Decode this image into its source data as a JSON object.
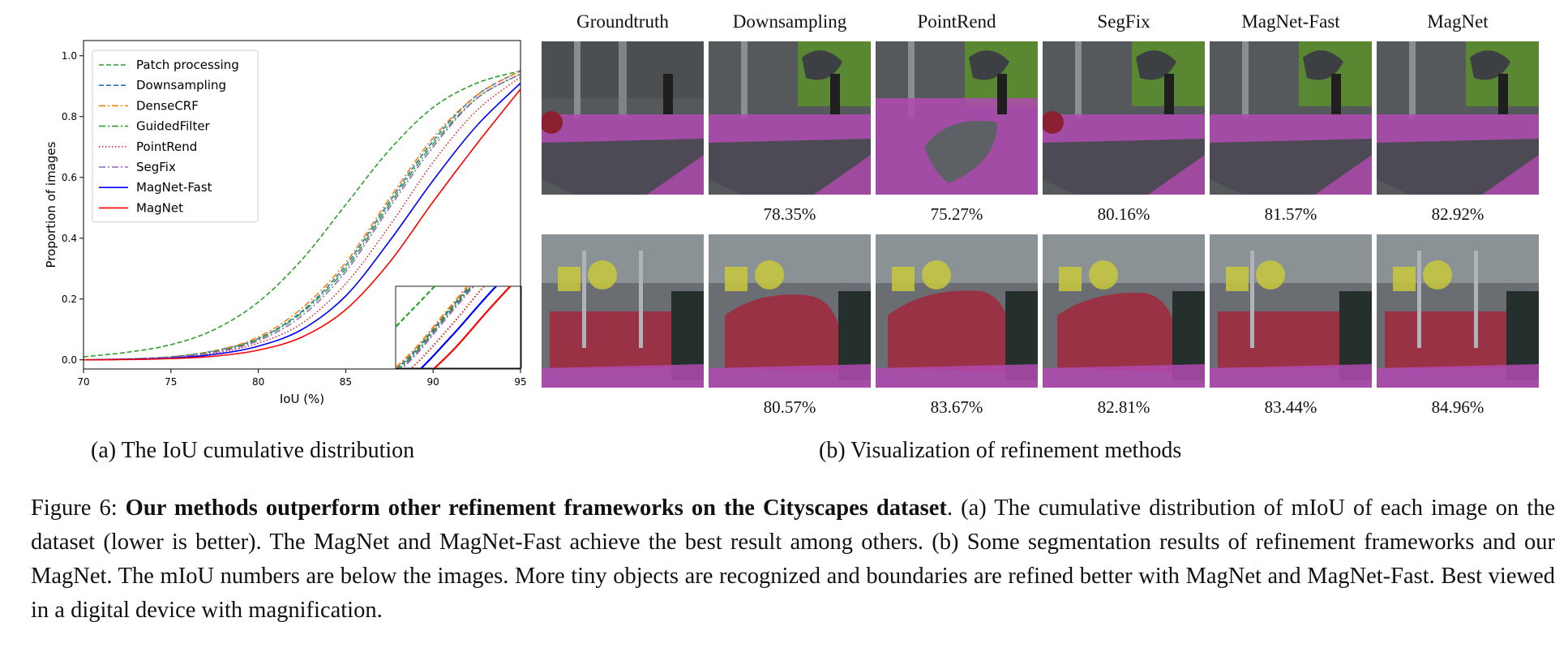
{
  "chart_data": {
    "type": "line",
    "xlabel": "IoU (%)",
    "ylabel": "Proportion of images",
    "xlim": [
      70,
      95
    ],
    "ylim": [
      -0.03,
      1.05
    ],
    "xticks": [
      "70",
      "75",
      "80",
      "85",
      "90",
      "95"
    ],
    "yticks": [
      "0.0",
      "0.2",
      "0.4",
      "0.6",
      "0.8",
      "1.0"
    ],
    "legend_position": "top-left",
    "grid": false,
    "series": [
      {
        "name": "Patch processing",
        "color": "#2ca02c",
        "dash": "dashed",
        "x": [
          70,
          72.5,
          75,
          77.5,
          80,
          82.5,
          85,
          87.5,
          90,
          92.5,
          95
        ],
        "y": [
          0.01,
          0.025,
          0.05,
          0.1,
          0.19,
          0.33,
          0.51,
          0.69,
          0.83,
          0.91,
          0.95
        ]
      },
      {
        "name": "Downsampling",
        "color": "#1f77b4",
        "dash": "dashed",
        "x": [
          70,
          72.5,
          75,
          77.5,
          80,
          82.5,
          85,
          87.5,
          90,
          92.5,
          95
        ],
        "y": [
          0.0,
          0.003,
          0.01,
          0.03,
          0.07,
          0.16,
          0.31,
          0.52,
          0.72,
          0.87,
          0.95
        ]
      },
      {
        "name": "DenseCRF",
        "color": "#ff7f0e",
        "dash": "dashdot",
        "x": [
          70,
          72.5,
          75,
          77.5,
          80,
          82.5,
          85,
          87.5,
          90,
          92.5,
          95
        ],
        "y": [
          0.0,
          0.003,
          0.01,
          0.03,
          0.075,
          0.17,
          0.32,
          0.53,
          0.73,
          0.87,
          0.95
        ]
      },
      {
        "name": "GuidedFilter",
        "color": "#2ca02c",
        "dash": "dashdot",
        "x": [
          70,
          72.5,
          75,
          77.5,
          80,
          82.5,
          85,
          87.5,
          90,
          92.5,
          95
        ],
        "y": [
          0.0,
          0.002,
          0.009,
          0.028,
          0.068,
          0.155,
          0.3,
          0.51,
          0.71,
          0.86,
          0.94
        ]
      },
      {
        "name": "PointRend",
        "color": "#d62728",
        "dash": "dotted",
        "x": [
          70,
          72.5,
          75,
          77.5,
          80,
          82.5,
          85,
          87.5,
          90,
          92.5,
          95
        ],
        "y": [
          0.0,
          0.002,
          0.007,
          0.022,
          0.055,
          0.12,
          0.25,
          0.44,
          0.65,
          0.82,
          0.93
        ]
      },
      {
        "name": "SegFix",
        "color": "#9467bd",
        "dash": "dashdot",
        "x": [
          70,
          72.5,
          75,
          77.5,
          80,
          82.5,
          85,
          87.5,
          90,
          92.5,
          95
        ],
        "y": [
          0.0,
          0.002,
          0.008,
          0.025,
          0.063,
          0.145,
          0.29,
          0.5,
          0.7,
          0.86,
          0.94
        ]
      },
      {
        "name": "MagNet-Fast",
        "color": "#0000ff",
        "dash": "solid",
        "x": [
          70,
          72.5,
          75,
          77.5,
          80,
          82.5,
          85,
          87.5,
          90,
          92.5,
          95
        ],
        "y": [
          0.0,
          0.002,
          0.006,
          0.018,
          0.045,
          0.1,
          0.21,
          0.39,
          0.59,
          0.77,
          0.91
        ]
      },
      {
        "name": "MagNet",
        "color": "#ff0000",
        "dash": "solid",
        "x": [
          70,
          72.5,
          75,
          77.5,
          80,
          82.5,
          85,
          87.5,
          90,
          92.5,
          95
        ],
        "y": [
          0.0,
          0.001,
          0.004,
          0.012,
          0.032,
          0.075,
          0.165,
          0.32,
          0.52,
          0.71,
          0.89
        ]
      }
    ]
  },
  "panel_b": {
    "columns": [
      "Groundtruth",
      "Downsampling",
      "PointRend",
      "SegFix",
      "MagNet-Fast",
      "MagNet"
    ],
    "row1_scores": [
      "78.35%",
      "75.27%",
      "80.16%",
      "81.57%",
      "82.92%"
    ],
    "row2_scores": [
      "80.57%",
      "83.67%",
      "82.81%",
      "83.44%",
      "84.96%"
    ]
  },
  "subcaptions": {
    "a": "(a) The IoU cumulative distribution",
    "b": "(b) Visualization of refinement methods"
  },
  "caption": {
    "label": "Figure 6:",
    "bold": "Our methods outperform other refinement frameworks on the Cityscapes dataset",
    "rest": ". (a) The cumulative distribution of mIoU of each image on the dataset (lower is better). The MagNet and MagNet-Fast achieve the best result among others. (b) Some segmentation results of refinement frameworks and our MagNet.  The mIoU numbers are below the images.  More tiny objects are recognized and boundaries are refined better with MagNet and MagNet-Fast. Best viewed in a digital device with magnification."
  },
  "colors": {
    "road": "#b24ab2",
    "car": "#a0283c",
    "sign": "#c8c83c",
    "vegetation": "#5a8c2d",
    "building": "#6a6e72"
  }
}
